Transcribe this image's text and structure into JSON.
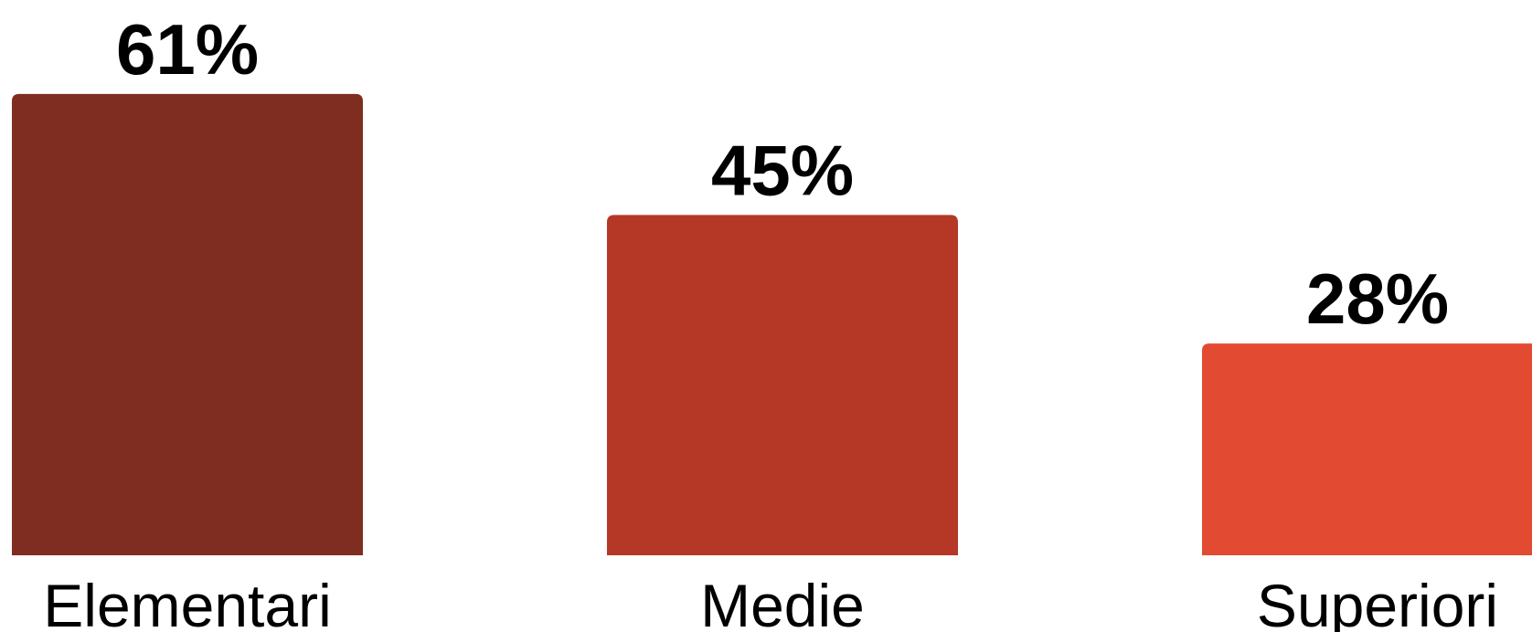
{
  "chart_data": {
    "type": "bar",
    "categories": [
      "Elementari",
      "Medie",
      "Superiori"
    ],
    "values": [
      61,
      45,
      28
    ],
    "value_labels": [
      "61%",
      "45%",
      "28%"
    ],
    "colors": [
      "#7f2d20",
      "#b53726",
      "#e34a32"
    ],
    "title": "",
    "xlabel": "",
    "ylabel": "",
    "grid": false,
    "legend": "none"
  }
}
